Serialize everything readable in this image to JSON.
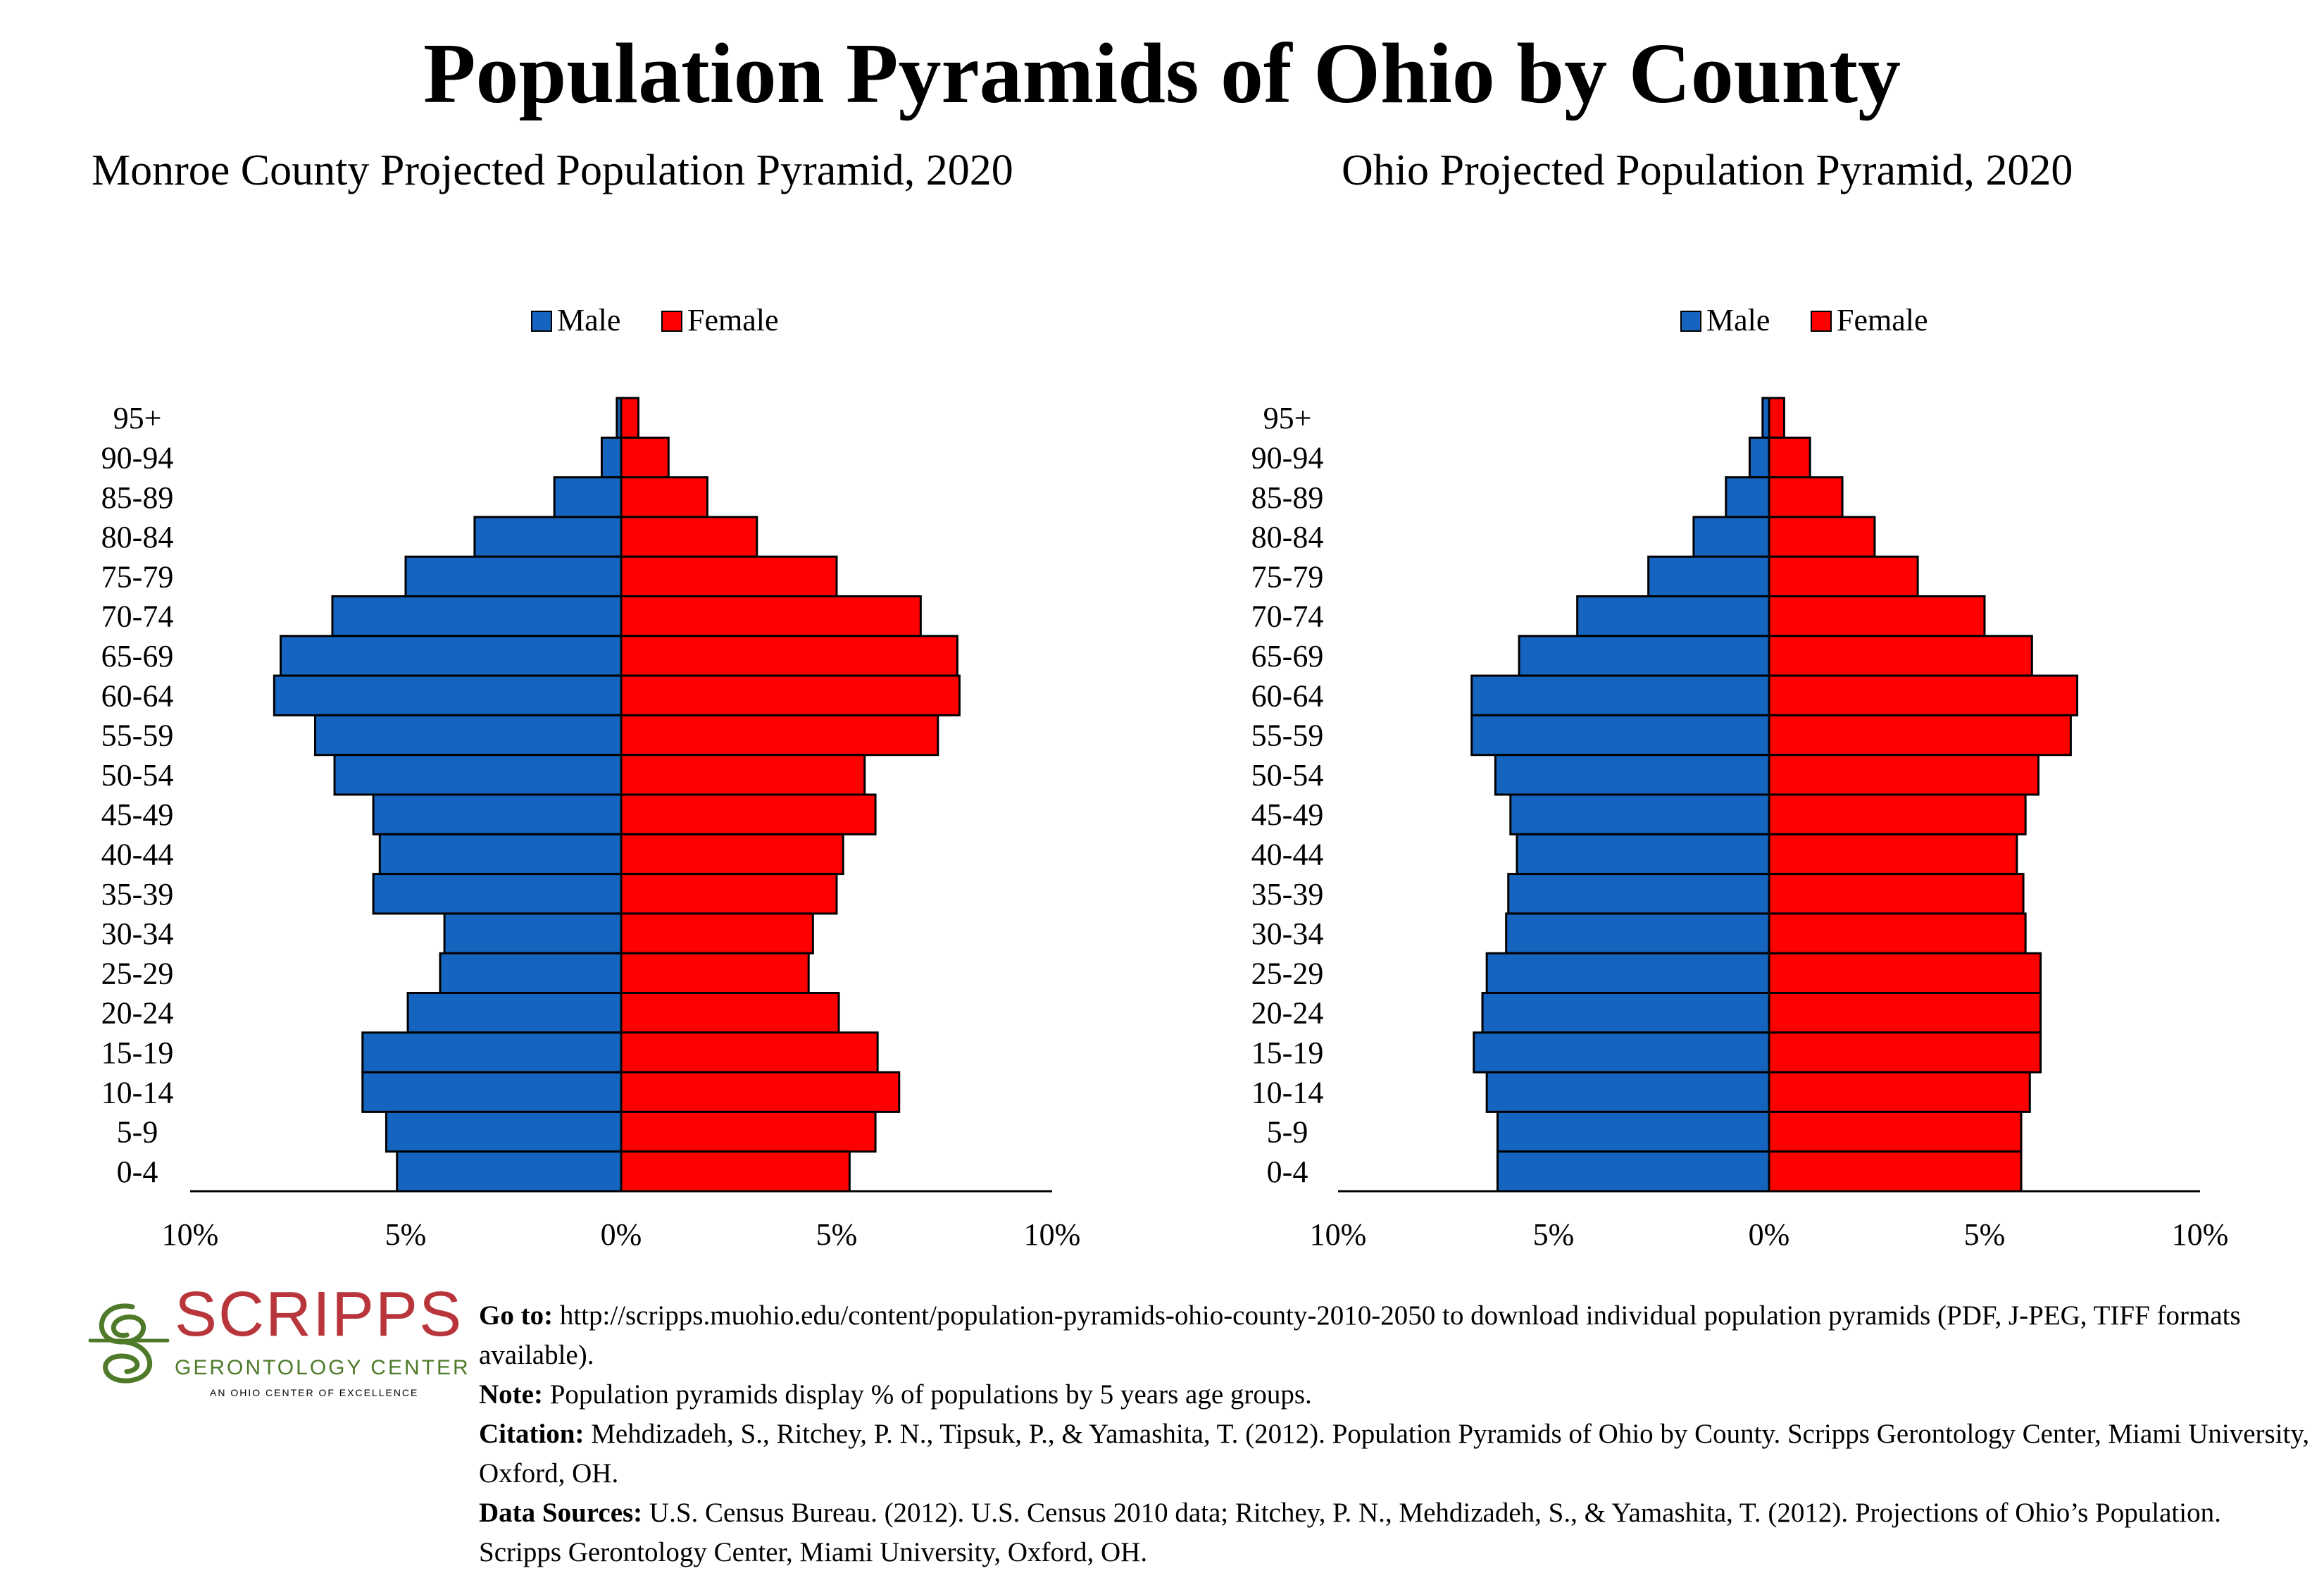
{
  "title": "Population Pyramids of Ohio by County",
  "chart_data": [
    {
      "type": "bar",
      "orientation": "horizontal-pyramid",
      "title": "Monroe County Projected Population Pyramid, 2020",
      "categories": [
        "95+",
        "90-94",
        "85-89",
        "80-84",
        "75-79",
        "70-74",
        "65-69",
        "60-64",
        "55-59",
        "50-54",
        "45-49",
        "40-44",
        "35-39",
        "30-34",
        "25-29",
        "20-24",
        "15-19",
        "10-14",
        "5-9",
        "0-4"
      ],
      "series": [
        {
          "name": "Male",
          "values": [
            0.1,
            0.45,
            1.55,
            3.4,
            5.0,
            6.7,
            7.9,
            8.05,
            7.1,
            6.65,
            5.75,
            5.6,
            5.75,
            4.1,
            4.2,
            4.95,
            6.0,
            6.0,
            5.45,
            5.2
          ],
          "color": "#1565c0"
        },
        {
          "name": "Female",
          "values": [
            0.4,
            1.1,
            2.0,
            3.15,
            5.0,
            6.95,
            7.8,
            7.85,
            7.35,
            5.65,
            5.9,
            5.15,
            5.0,
            4.45,
            4.35,
            5.05,
            5.95,
            6.45,
            5.9,
            5.3
          ],
          "color": "#ff0000"
        }
      ],
      "x_tick_labels": [
        "10%",
        "5%",
        "0%",
        "5%",
        "10%"
      ],
      "xlim": [
        -10,
        10
      ],
      "legend": "top-center",
      "grid": false
    },
    {
      "type": "bar",
      "orientation": "horizontal-pyramid",
      "title": "Ohio Projected Population Pyramid, 2020",
      "categories": [
        "95+",
        "90-94",
        "85-89",
        "80-84",
        "75-79",
        "70-74",
        "65-69",
        "60-64",
        "55-59",
        "50-54",
        "45-49",
        "40-44",
        "35-39",
        "30-34",
        "25-29",
        "20-24",
        "15-19",
        "10-14",
        "5-9",
        "0-4"
      ],
      "series": [
        {
          "name": "Male",
          "values": [
            0.15,
            0.45,
            1.0,
            1.75,
            2.8,
            4.45,
            5.8,
            6.9,
            6.9,
            6.35,
            6.0,
            5.85,
            6.05,
            6.1,
            6.55,
            6.65,
            6.85,
            6.55,
            6.3,
            6.3
          ],
          "color": "#1565c0"
        },
        {
          "name": "Female",
          "values": [
            0.35,
            0.95,
            1.7,
            2.45,
            3.45,
            5.0,
            6.1,
            7.15,
            7.0,
            6.25,
            5.95,
            5.75,
            5.9,
            5.95,
            6.3,
            6.3,
            6.3,
            6.05,
            5.85,
            5.85
          ],
          "color": "#ff0000"
        }
      ],
      "x_tick_labels": [
        "10%",
        "5%",
        "0%",
        "5%",
        "10%"
      ],
      "xlim": [
        -10,
        10
      ],
      "legend": "top-center",
      "grid": false
    }
  ],
  "logo": {
    "wordmark": "SCRIPPS",
    "subtitle": "GERONTOLOGY CENTER",
    "tagline": "AN OHIO CENTER OF EXCELLENCE"
  },
  "notes": {
    "goto_label": "Go to:",
    "goto_text": " http://scripps.muohio.edu/content/population-pyramids-ohio-county-2010-2050 to download individual population pyramids (PDF, J-PEG, TIFF formats available).",
    "note_label": "Note:",
    "note_text": " Population pyramids display % of populations by 5 years age groups.",
    "citation_label": "Citation:",
    "citation_text": " Mehdizadeh, S., Ritchey, P. N., Tipsuk, P., & Yamashita, T. (2012). Population Pyramids of Ohio by County. Scripps Gerontology Center, Miami University, Oxford, OH.",
    "sources_label": "Data Sources:",
    "sources_text": " U.S. Census Bureau. (2012). U.S. Census 2010 data; Ritchey, P. N., Mehdizadeh, S., & Yamashita, T. (2012). Projections of Ohio’s Population. Scripps Gerontology Center, Miami University, Oxford, OH."
  }
}
